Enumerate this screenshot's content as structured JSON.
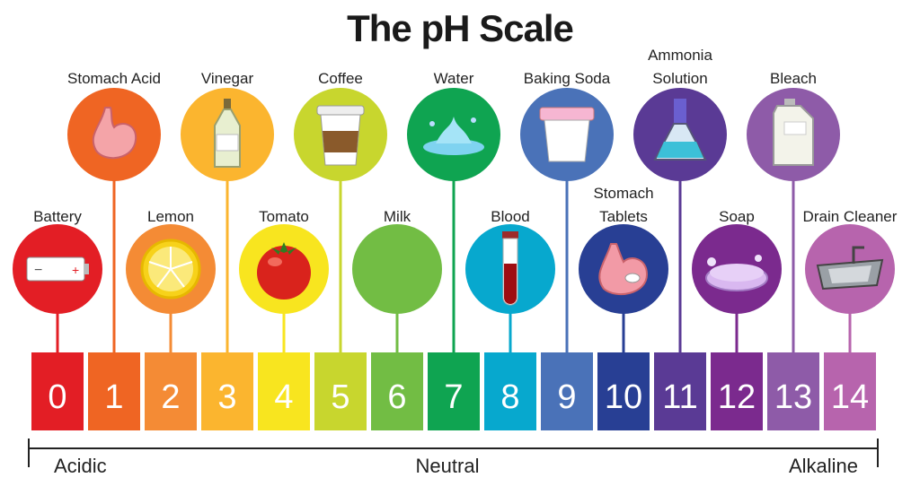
{
  "title": "The pH Scale",
  "scale": [
    {
      "value": "0",
      "label": [
        "Battery"
      ],
      "icon": "battery-icon",
      "color": "#e31e25",
      "row": "lower"
    },
    {
      "value": "1",
      "label": [
        "Stomach Acid"
      ],
      "icon": "stomach-icon",
      "color": "#ef6523",
      "row": "upper"
    },
    {
      "value": "2",
      "label": [
        "Lemon"
      ],
      "icon": "lemon-icon",
      "color": "#f48b35",
      "row": "lower"
    },
    {
      "value": "3",
      "label": [
        "Vinegar"
      ],
      "icon": "vinegar-bottle-icon",
      "color": "#fbb52f",
      "row": "upper"
    },
    {
      "value": "4",
      "label": [
        "Tomato"
      ],
      "icon": "tomato-icon",
      "color": "#f8e51f",
      "row": "lower"
    },
    {
      "value": "5",
      "label": [
        "Coffee"
      ],
      "icon": "coffee-cup-icon",
      "color": "#c8d62e",
      "row": "upper"
    },
    {
      "value": "6",
      "label": [
        "Milk"
      ],
      "icon": "milk-bottle-icon",
      "color": "#72bd44",
      "row": "lower"
    },
    {
      "value": "7",
      "label": [
        "Water"
      ],
      "icon": "water-splash-icon",
      "color": "#0fa451",
      "row": "upper"
    },
    {
      "value": "8",
      "label": [
        "Blood"
      ],
      "icon": "blood-tube-icon",
      "color": "#07a8ce",
      "row": "lower"
    },
    {
      "value": "9",
      "label": [
        "Baking Soda"
      ],
      "icon": "baking-soda-cup-icon",
      "color": "#4a72b8",
      "row": "upper"
    },
    {
      "value": "10",
      "label": [
        "Stomach",
        "Tablets"
      ],
      "icon": "stomach-tablet-icon",
      "color": "#283f94",
      "row": "lower"
    },
    {
      "value": "11",
      "label": [
        "Ammonia",
        "Solution"
      ],
      "icon": "flask-icon",
      "color": "#5a3a95",
      "row": "upper"
    },
    {
      "value": "12",
      "label": [
        "Soap"
      ],
      "icon": "soap-icon",
      "color": "#7b2a8e",
      "row": "lower"
    },
    {
      "value": "13",
      "label": [
        "Bleach"
      ],
      "icon": "bleach-jug-icon",
      "color": "#8e5ba8",
      "row": "upper"
    },
    {
      "value": "14",
      "label": [
        "Drain Cleaner"
      ],
      "icon": "sink-icon",
      "color": "#b764ad",
      "row": "lower"
    }
  ],
  "axis": {
    "left": "Acidic",
    "center": "Neutral",
    "right": "Alkaline"
  }
}
